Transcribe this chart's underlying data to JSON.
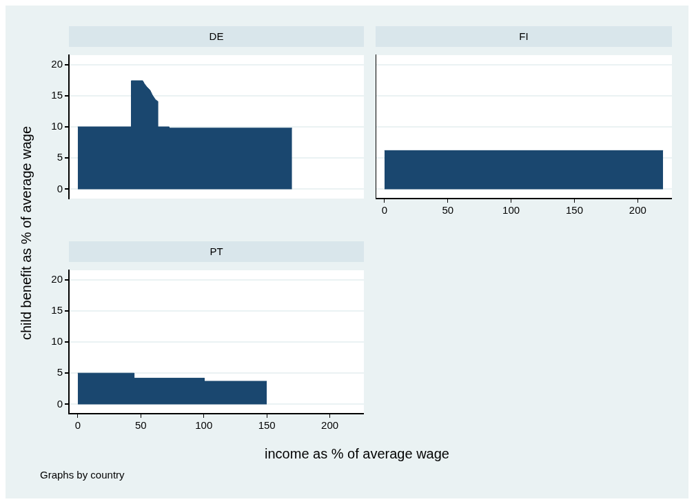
{
  "chart_data": [
    {
      "type": "area",
      "title": "DE",
      "ylabel": "child benefit as % of average wage",
      "color": "#1a476f",
      "x": [
        0,
        42.5,
        42.5,
        51.5,
        52.9,
        54.8,
        57.3,
        59.2,
        61.5,
        63.4,
        63.4,
        72.5,
        72.5,
        170
      ],
      "values": [
        10,
        10,
        17.4,
        17.4,
        16.9,
        16.4,
        15.9,
        15.1,
        14.4,
        14.1,
        10,
        10,
        9.8,
        9.8
      ],
      "xlim": [
        -7,
        227
      ],
      "ylim": [
        -1.5,
        21.5
      ],
      "xticks": [
        0,
        50,
        100,
        150,
        200
      ],
      "yticks": [
        0,
        5,
        10,
        15,
        20
      ],
      "grid": "y",
      "tick_labels": "y"
    },
    {
      "type": "area",
      "title": "FI",
      "color": "#1a476f",
      "x": [
        0,
        220
      ],
      "values": [
        6.2,
        6.2
      ],
      "xlim": [
        -7,
        227
      ],
      "ylim": [
        -1.5,
        21.5
      ],
      "xticks": [
        0,
        50,
        100,
        150,
        200
      ],
      "yticks": [
        0,
        5,
        10,
        15,
        20
      ],
      "grid": "y",
      "tick_labels": "x"
    },
    {
      "type": "area",
      "title": "PT",
      "xlabel": "income as % of average wage",
      "annotations": [
        "Graphs by country"
      ],
      "color": "#1a476f",
      "x": [
        0,
        44.7,
        44.7,
        100.4,
        100.4,
        150
      ],
      "values": [
        5,
        5,
        4.2,
        4.2,
        3.7,
        3.7
      ],
      "xlim": [
        -7,
        227
      ],
      "ylim": [
        -1.5,
        21.5
      ],
      "xticks": [
        0,
        50,
        100,
        150,
        200
      ],
      "yticks": [
        0,
        5,
        10,
        15,
        20
      ],
      "grid": "y"
    }
  ]
}
